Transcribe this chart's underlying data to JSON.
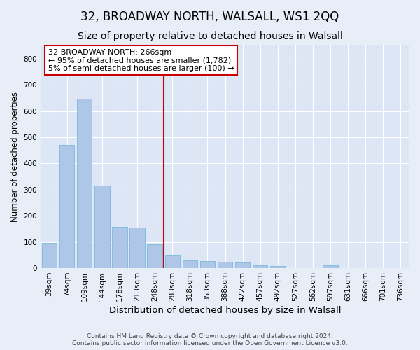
{
  "title": "32, BROADWAY NORTH, WALSALL, WS1 2QQ",
  "subtitle": "Size of property relative to detached houses in Walsall",
  "xlabel": "Distribution of detached houses by size in Walsall",
  "ylabel": "Number of detached properties",
  "categories": [
    "39sqm",
    "74sqm",
    "109sqm",
    "144sqm",
    "178sqm",
    "213sqm",
    "248sqm",
    "283sqm",
    "318sqm",
    "353sqm",
    "388sqm",
    "422sqm",
    "457sqm",
    "492sqm",
    "527sqm",
    "562sqm",
    "597sqm",
    "631sqm",
    "666sqm",
    "701sqm",
    "736sqm"
  ],
  "values": [
    96,
    470,
    648,
    315,
    157,
    155,
    90,
    48,
    30,
    27,
    25,
    22,
    10,
    7,
    0,
    0,
    12,
    0,
    0,
    0,
    0
  ],
  "bar_color": "#aec6e8",
  "bar_edgecolor": "#7ab8d9",
  "vline_color": "#cc0000",
  "annotation_line1": "32 BROADWAY NORTH: 266sqm",
  "annotation_line2": "← 95% of detached houses are smaller (1,782)",
  "annotation_line3": "5% of semi-detached houses are larger (100) →",
  "annotation_box_facecolor": "#ffffff",
  "annotation_box_edgecolor": "#cc0000",
  "bg_color": "#e8eef7",
  "plot_bg_color": "#dce6f5",
  "footer": "Contains HM Land Registry data © Crown copyright and database right 2024.\nContains public sector information licensed under the Open Government Licence v3.0.",
  "ylim": [
    0,
    850
  ],
  "yticks": [
    0,
    100,
    200,
    300,
    400,
    500,
    600,
    700,
    800
  ],
  "title_fontsize": 12,
  "subtitle_fontsize": 10,
  "xlabel_fontsize": 9.5,
  "ylabel_fontsize": 8.5,
  "tick_fontsize": 7.5,
  "footer_fontsize": 6.5,
  "annotation_fontsize": 8
}
